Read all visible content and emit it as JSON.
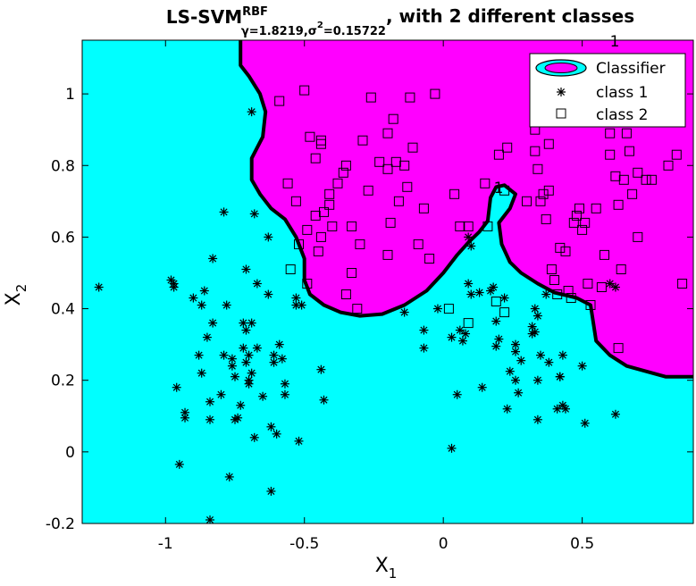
{
  "chart_data": {
    "type": "scatter",
    "title": {
      "main": "LS-SVM",
      "superscript": "RBF",
      "subscript": "γ=1.8219,σ",
      "sub_sup": "2",
      "sub_tail": "=0.15722",
      "tail": ", with 2 different classes"
    },
    "xlabel": {
      "base": "X",
      "sub": "1"
    },
    "ylabel": {
      "base": "X",
      "sub": "2"
    },
    "xlim": [
      -1.3,
      0.9
    ],
    "ylim": [
      -0.2,
      1.15
    ],
    "xticks": [
      -1,
      -0.5,
      0,
      0.5
    ],
    "xtick_labels": [
      "-1",
      "-0.5",
      "0",
      "0.5"
    ],
    "yticks": [
      -0.2,
      0,
      0.2,
      0.4,
      0.6,
      0.8,
      1
    ],
    "ytick_labels": [
      "-0.2",
      "0",
      "0.2",
      "0.4",
      "0.6",
      "0.8",
      "1"
    ],
    "grid": false,
    "legend_position": "top-right",
    "colors": {
      "class1_region": "#00ffff",
      "class2_region": "#ff00ff",
      "boundary": "#000000"
    },
    "legend": [
      "Classifier",
      "class 1",
      "class 2"
    ],
    "contour_label": "1",
    "decision_boundary": [
      [
        -0.73,
        1.15
      ],
      [
        -0.73,
        1.08
      ],
      [
        -0.7,
        1.05
      ],
      [
        -0.66,
        1.0
      ],
      [
        -0.64,
        0.95
      ],
      [
        -0.65,
        0.88
      ],
      [
        -0.69,
        0.82
      ],
      [
        -0.69,
        0.76
      ],
      [
        -0.66,
        0.72
      ],
      [
        -0.62,
        0.68
      ],
      [
        -0.57,
        0.65
      ],
      [
        -0.53,
        0.6
      ],
      [
        -0.5,
        0.54
      ],
      [
        -0.5,
        0.48
      ],
      [
        -0.48,
        0.44
      ],
      [
        -0.43,
        0.41
      ],
      [
        -0.37,
        0.39
      ],
      [
        -0.3,
        0.38
      ],
      [
        -0.22,
        0.385
      ],
      [
        -0.14,
        0.41
      ],
      [
        -0.06,
        0.45
      ],
      [
        0.0,
        0.5
      ],
      [
        0.05,
        0.55
      ],
      [
        0.09,
        0.585
      ],
      [
        0.13,
        0.615
      ],
      [
        0.16,
        0.645
      ],
      [
        0.17,
        0.71
      ],
      [
        0.19,
        0.74
      ],
      [
        0.22,
        0.745
      ],
      [
        0.26,
        0.72
      ],
      [
        0.24,
        0.68
      ],
      [
        0.2,
        0.64
      ],
      [
        0.21,
        0.58
      ],
      [
        0.24,
        0.53
      ],
      [
        0.28,
        0.5
      ],
      [
        0.34,
        0.47
      ],
      [
        0.4,
        0.445
      ],
      [
        0.48,
        0.43
      ],
      [
        0.53,
        0.41
      ],
      [
        0.54,
        0.36
      ],
      [
        0.55,
        0.31
      ],
      [
        0.6,
        0.27
      ],
      [
        0.66,
        0.24
      ],
      [
        0.73,
        0.225
      ],
      [
        0.8,
        0.21
      ],
      [
        0.9,
        0.21
      ]
    ],
    "series": [
      {
        "name": "class 1",
        "marker": "asterisk",
        "points": [
          [
            -1.24,
            0.46
          ],
          [
            -0.98,
            0.48
          ],
          [
            -0.97,
            0.47
          ],
          [
            -0.97,
            0.46
          ],
          [
            -0.96,
            0.18
          ],
          [
            -0.95,
            -0.035
          ],
          [
            -0.93,
            0.11
          ],
          [
            -0.93,
            0.095
          ],
          [
            -0.9,
            0.43
          ],
          [
            -0.88,
            0.27
          ],
          [
            -0.87,
            0.22
          ],
          [
            -0.87,
            0.41
          ],
          [
            -0.86,
            0.45
          ],
          [
            -0.85,
            0.32
          ],
          [
            -0.84,
            0.09
          ],
          [
            -0.84,
            0.14
          ],
          [
            -0.83,
            0.54
          ],
          [
            -0.83,
            0.36
          ],
          [
            -0.84,
            -0.19
          ],
          [
            -0.8,
            0.16
          ],
          [
            -0.79,
            0.67
          ],
          [
            -0.79,
            0.27
          ],
          [
            -0.78,
            0.41
          ],
          [
            -0.77,
            -0.07
          ],
          [
            -0.76,
            0.24
          ],
          [
            -0.76,
            0.26
          ],
          [
            -0.75,
            0.09
          ],
          [
            -0.75,
            0.21
          ],
          [
            -0.74,
            0.095
          ],
          [
            -0.73,
            0.13
          ],
          [
            -0.72,
            0.36
          ],
          [
            -0.72,
            0.29
          ],
          [
            -0.71,
            0.34
          ],
          [
            -0.71,
            0.51
          ],
          [
            -0.71,
            0.25
          ],
          [
            -0.7,
            0.27
          ],
          [
            -0.7,
            0.19
          ],
          [
            -0.7,
            0.2
          ],
          [
            -0.69,
            0.95
          ],
          [
            -0.68,
            0.665
          ],
          [
            -0.69,
            0.36
          ],
          [
            -0.69,
            0.22
          ],
          [
            -0.68,
            0.04
          ],
          [
            -0.67,
            0.29
          ],
          [
            -0.67,
            0.47
          ],
          [
            -0.65,
            0.155
          ],
          [
            -0.63,
            0.6
          ],
          [
            -0.63,
            0.44
          ],
          [
            -0.62,
            0.07
          ],
          [
            -0.62,
            -0.11
          ],
          [
            -0.61,
            0.25
          ],
          [
            -0.61,
            0.27
          ],
          [
            -0.6,
            0.05
          ],
          [
            -0.59,
            0.3
          ],
          [
            -0.58,
            0.26
          ],
          [
            -0.57,
            0.16
          ],
          [
            -0.57,
            0.19
          ],
          [
            -0.53,
            0.43
          ],
          [
            -0.53,
            0.41
          ],
          [
            -0.51,
            0.41
          ],
          [
            -0.52,
            0.03
          ],
          [
            -0.44,
            0.23
          ],
          [
            -0.43,
            0.145
          ],
          [
            -0.14,
            0.39
          ],
          [
            -0.07,
            0.34
          ],
          [
            -0.07,
            0.29
          ],
          [
            -0.02,
            0.4
          ],
          [
            0.03,
            0.32
          ],
          [
            0.03,
            0.01
          ],
          [
            0.05,
            0.16
          ],
          [
            0.06,
            0.34
          ],
          [
            0.07,
            0.31
          ],
          [
            0.08,
            0.33
          ],
          [
            0.09,
            0.47
          ],
          [
            0.09,
            0.6
          ],
          [
            0.1,
            0.575
          ],
          [
            0.1,
            0.44
          ],
          [
            0.13,
            0.445
          ],
          [
            0.14,
            0.18
          ],
          [
            0.17,
            0.45
          ],
          [
            0.18,
            0.46
          ],
          [
            0.19,
            0.365
          ],
          [
            0.19,
            0.295
          ],
          [
            0.2,
            0.315
          ],
          [
            0.22,
            0.43
          ],
          [
            0.23,
            0.12
          ],
          [
            0.24,
            0.225
          ],
          [
            0.26,
            0.3
          ],
          [
            0.26,
            0.28
          ],
          [
            0.26,
            0.2
          ],
          [
            0.27,
            0.165
          ],
          [
            0.28,
            0.255
          ],
          [
            0.32,
            0.35
          ],
          [
            0.32,
            0.33
          ],
          [
            0.33,
            0.335
          ],
          [
            0.33,
            0.4
          ],
          [
            0.34,
            0.38
          ],
          [
            0.34,
            0.2
          ],
          [
            0.34,
            0.09
          ],
          [
            0.35,
            0.27
          ],
          [
            0.37,
            0.44
          ],
          [
            0.38,
            0.25
          ],
          [
            0.41,
            0.12
          ],
          [
            0.42,
            0.21
          ],
          [
            0.42,
            0.21
          ],
          [
            0.43,
            0.27
          ],
          [
            0.43,
            0.13
          ],
          [
            0.44,
            0.12
          ],
          [
            0.5,
            0.24
          ],
          [
            0.51,
            0.08
          ],
          [
            0.62,
            0.46
          ],
          [
            0.6,
            0.47
          ],
          [
            0.62,
            0.105
          ]
        ]
      },
      {
        "name": "class 2",
        "marker": "square",
        "points": [
          [
            -0.59,
            0.98
          ],
          [
            -0.56,
            0.75
          ],
          [
            -0.53,
            0.7
          ],
          [
            -0.5,
            1.01
          ],
          [
            -0.48,
            0.88
          ],
          [
            -0.46,
            0.82
          ],
          [
            -0.44,
            0.86
          ],
          [
            -0.44,
            0.87
          ],
          [
            -0.41,
            0.72
          ],
          [
            -0.43,
            0.67
          ],
          [
            -0.46,
            0.66
          ],
          [
            -0.49,
            0.62
          ],
          [
            -0.52,
            0.58
          ],
          [
            -0.55,
            0.51
          ],
          [
            -0.49,
            0.47
          ],
          [
            -0.45,
            0.56
          ],
          [
            -0.44,
            0.6
          ],
          [
            -0.41,
            0.69
          ],
          [
            -0.4,
            0.63
          ],
          [
            -0.38,
            0.75
          ],
          [
            -0.36,
            0.78
          ],
          [
            -0.35,
            0.8
          ],
          [
            -0.33,
            0.63
          ],
          [
            -0.35,
            0.44
          ],
          [
            -0.33,
            0.5
          ],
          [
            -0.31,
            0.4
          ],
          [
            -0.3,
            0.58
          ],
          [
            -0.29,
            0.87
          ],
          [
            -0.27,
            0.73
          ],
          [
            -0.26,
            0.99
          ],
          [
            -0.23,
            0.81
          ],
          [
            -0.2,
            0.89
          ],
          [
            -0.2,
            0.79
          ],
          [
            -0.2,
            0.55
          ],
          [
            -0.19,
            0.64
          ],
          [
            -0.18,
            0.93
          ],
          [
            -0.17,
            0.81
          ],
          [
            -0.16,
            0.7
          ],
          [
            -0.14,
            0.8
          ],
          [
            -0.13,
            0.74
          ],
          [
            -0.12,
            0.99
          ],
          [
            -0.11,
            0.85
          ],
          [
            -0.09,
            0.58
          ],
          [
            -0.07,
            0.68
          ],
          [
            -0.05,
            0.54
          ],
          [
            -0.03,
            1.0
          ],
          [
            0.02,
            0.4
          ],
          [
            0.04,
            0.72
          ],
          [
            0.06,
            0.63
          ],
          [
            0.09,
            0.36
          ],
          [
            0.09,
            0.63
          ],
          [
            0.15,
            0.75
          ],
          [
            0.16,
            0.63
          ],
          [
            0.19,
            0.42
          ],
          [
            0.22,
            0.39
          ],
          [
            0.22,
            0.73
          ],
          [
            0.2,
            0.83
          ],
          [
            0.23,
            0.85
          ],
          [
            0.3,
            0.7
          ],
          [
            0.33,
            0.84
          ],
          [
            0.33,
            0.9
          ],
          [
            0.34,
            0.79
          ],
          [
            0.35,
            0.7
          ],
          [
            0.36,
            0.72
          ],
          [
            0.37,
            0.65
          ],
          [
            0.38,
            0.73
          ],
          [
            0.38,
            0.86
          ],
          [
            0.39,
            0.51
          ],
          [
            0.4,
            0.48
          ],
          [
            0.41,
            0.44
          ],
          [
            0.42,
            0.57
          ],
          [
            0.44,
            0.56
          ],
          [
            0.45,
            0.45
          ],
          [
            0.46,
            0.43
          ],
          [
            0.47,
            0.64
          ],
          [
            0.48,
            0.66
          ],
          [
            0.49,
            0.68
          ],
          [
            0.5,
            0.62
          ],
          [
            0.51,
            0.64
          ],
          [
            0.52,
            0.47
          ],
          [
            0.53,
            0.41
          ],
          [
            0.55,
            0.68
          ],
          [
            0.57,
            0.46
          ],
          [
            0.58,
            0.55
          ],
          [
            0.6,
            0.89
          ],
          [
            0.62,
            0.77
          ],
          [
            0.63,
            0.69
          ],
          [
            0.64,
            0.51
          ],
          [
            0.65,
            0.76
          ],
          [
            0.66,
            0.89
          ],
          [
            0.67,
            0.84
          ],
          [
            0.68,
            0.72
          ],
          [
            0.7,
            0.78
          ],
          [
            0.7,
            0.6
          ],
          [
            0.73,
            0.76
          ],
          [
            0.75,
            0.76
          ],
          [
            0.76,
            0.99
          ],
          [
            0.81,
            0.8
          ],
          [
            0.84,
            0.83
          ],
          [
            0.86,
            0.47
          ],
          [
            0.63,
            0.29
          ],
          [
            0.6,
            0.83
          ]
        ]
      }
    ]
  }
}
